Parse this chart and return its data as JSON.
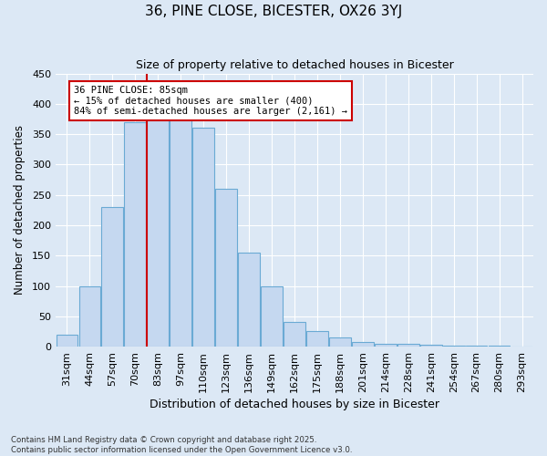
{
  "title": "36, PINE CLOSE, BICESTER, OX26 3YJ",
  "subtitle": "Size of property relative to detached houses in Bicester",
  "xlabel": "Distribution of detached houses by size in Bicester",
  "ylabel": "Number of detached properties",
  "bin_labels": [
    "31sqm",
    "44sqm",
    "57sqm",
    "70sqm",
    "83sqm",
    "97sqm",
    "110sqm",
    "123sqm",
    "136sqm",
    "149sqm",
    "162sqm",
    "175sqm",
    "188sqm",
    "201sqm",
    "214sqm",
    "228sqm",
    "241sqm",
    "254sqm",
    "267sqm",
    "280sqm",
    "293sqm"
  ],
  "bar_values": [
    20,
    100,
    230,
    370,
    375,
    375,
    360,
    260,
    155,
    100,
    40,
    25,
    15,
    8,
    5,
    4,
    3,
    2,
    1,
    1,
    0
  ],
  "bar_color": "#c5d8f0",
  "bar_edge_color": "#6aaad4",
  "property_line_x": 3.5,
  "property_label": "36 PINE CLOSE: 85sqm",
  "annotation_line1": "← 15% of detached houses are smaller (400)",
  "annotation_line2": "84% of semi-detached houses are larger (2,161) →",
  "annotation_box_color": "#ffffff",
  "annotation_box_edge": "#cc0000",
  "property_line_color": "#cc0000",
  "footnote1": "Contains HM Land Registry data © Crown copyright and database right 2025.",
  "footnote2": "Contains public sector information licensed under the Open Government Licence v3.0.",
  "bg_color": "#dce8f5",
  "ylim": [
    0,
    450
  ],
  "yticks": [
    0,
    50,
    100,
    150,
    200,
    250,
    300,
    350,
    400,
    450
  ]
}
